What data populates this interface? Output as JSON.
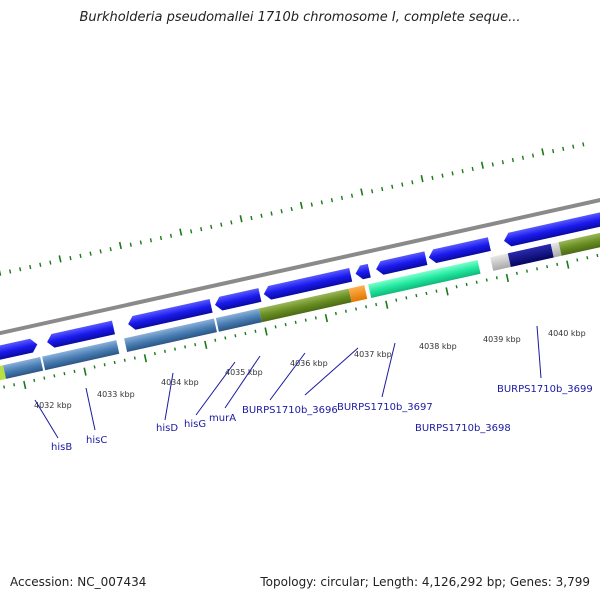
{
  "title": "Burkholderia pseudomallei 1710b chromosome I, complete seque...",
  "footer": {
    "accession": "Accession: NC_007434",
    "stats": "Topology: circular; Length: 4,126,292 bp; Genes: 3,799"
  },
  "ticks": [
    {
      "label": "4032 kbp"
    },
    {
      "label": "4033 kbp"
    },
    {
      "label": "4034 kbp"
    },
    {
      "label": "4035 kbp"
    },
    {
      "label": "4036 kbp"
    },
    {
      "label": "4037 kbp"
    },
    {
      "label": "4038 kbp"
    },
    {
      "label": "4039 kbp"
    },
    {
      "label": "4040 kbp"
    }
  ],
  "gene_labels": [
    {
      "text": "hisB"
    },
    {
      "text": "hisC"
    },
    {
      "text": "hisD"
    },
    {
      "text": "hisG"
    },
    {
      "text": "murA"
    },
    {
      "text": "BURPS1710b_3696"
    },
    {
      "text": "BURPS1710b_3697"
    },
    {
      "text": "BURPS1710b_3698"
    },
    {
      "text": "BURPS1710b_3699"
    }
  ],
  "colors": {
    "backbone": "#8a8a8a",
    "gene_blue": "#1a1aee",
    "gene_steel": "#4a7fb5",
    "gene_olive": "#6b8e23",
    "gene_orange": "#ff8c00",
    "gene_aqua": "#22e8a0",
    "gene_navy": "#0a0a80",
    "gene_grey": "#c8c8c8",
    "tick_green": "#1a7a1a",
    "label_blue": "#1a1aa0"
  }
}
